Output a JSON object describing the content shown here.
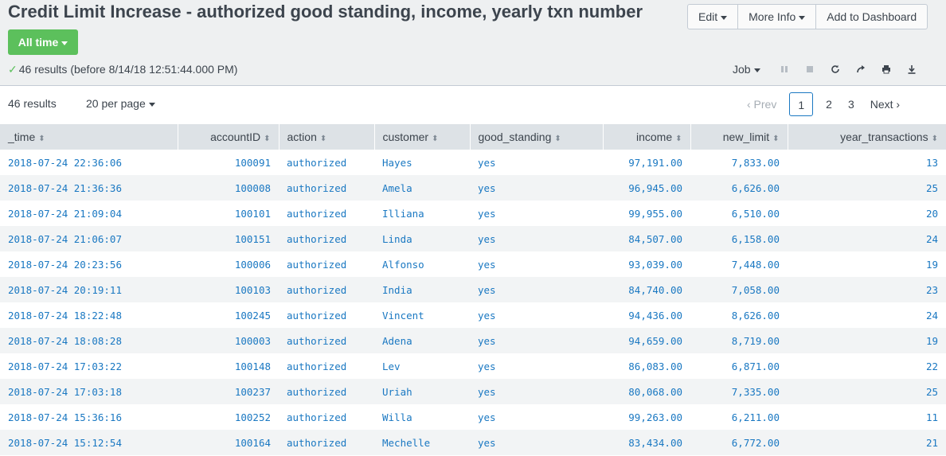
{
  "title": "Credit Limit Increase - authorized good standing, income, yearly txn number",
  "buttons": {
    "edit": "Edit",
    "more_info": "More Info",
    "add_dashboard": "Add to Dashboard"
  },
  "time_picker": "All time",
  "status": {
    "check": "✓",
    "text": "46 results (before 8/14/18 12:51:44.000 PM)"
  },
  "job": {
    "label": "Job",
    "icons": [
      "pause-icon",
      "stop-icon",
      "refresh-icon",
      "share-icon",
      "print-icon",
      "export-icon"
    ]
  },
  "results": {
    "count": "46 results",
    "per_page": "20 per page"
  },
  "pager": {
    "prev": "‹ Prev",
    "pages": [
      "1",
      "2",
      "3"
    ],
    "current": "1",
    "next": "Next ›"
  },
  "table": {
    "columns": [
      "_time",
      "accountID",
      "action",
      "customer",
      "good_standing",
      "income",
      "new_limit",
      "year_transactions"
    ],
    "rows": [
      [
        "2018-07-24 22:36:06",
        "100091",
        "authorized",
        "Hayes",
        "yes",
        "97,191.00",
        "7,833.00",
        "13"
      ],
      [
        "2018-07-24 21:36:36",
        "100008",
        "authorized",
        "Amela",
        "yes",
        "96,945.00",
        "6,626.00",
        "25"
      ],
      [
        "2018-07-24 21:09:04",
        "100101",
        "authorized",
        "Illiana",
        "yes",
        "99,955.00",
        "6,510.00",
        "20"
      ],
      [
        "2018-07-24 21:06:07",
        "100151",
        "authorized",
        "Linda",
        "yes",
        "84,507.00",
        "6,158.00",
        "24"
      ],
      [
        "2018-07-24 20:23:56",
        "100006",
        "authorized",
        "Alfonso",
        "yes",
        "93,039.00",
        "7,448.00",
        "19"
      ],
      [
        "2018-07-24 20:19:11",
        "100103",
        "authorized",
        "India",
        "yes",
        "84,740.00",
        "7,058.00",
        "23"
      ],
      [
        "2018-07-24 18:22:48",
        "100245",
        "authorized",
        "Vincent",
        "yes",
        "94,436.00",
        "8,626.00",
        "24"
      ],
      [
        "2018-07-24 18:08:28",
        "100003",
        "authorized",
        "Adena",
        "yes",
        "94,659.00",
        "8,719.00",
        "19"
      ],
      [
        "2018-07-24 17:03:22",
        "100148",
        "authorized",
        "Lev",
        "yes",
        "86,083.00",
        "6,871.00",
        "22"
      ],
      [
        "2018-07-24 17:03:18",
        "100237",
        "authorized",
        "Uriah",
        "yes",
        "80,068.00",
        "7,335.00",
        "25"
      ],
      [
        "2018-07-24 15:36:16",
        "100252",
        "authorized",
        "Willa",
        "yes",
        "99,263.00",
        "6,211.00",
        "11"
      ],
      [
        "2018-07-24 15:12:54",
        "100164",
        "authorized",
        "Mechelle",
        "yes",
        "83,434.00",
        "6,772.00",
        "21"
      ]
    ]
  }
}
